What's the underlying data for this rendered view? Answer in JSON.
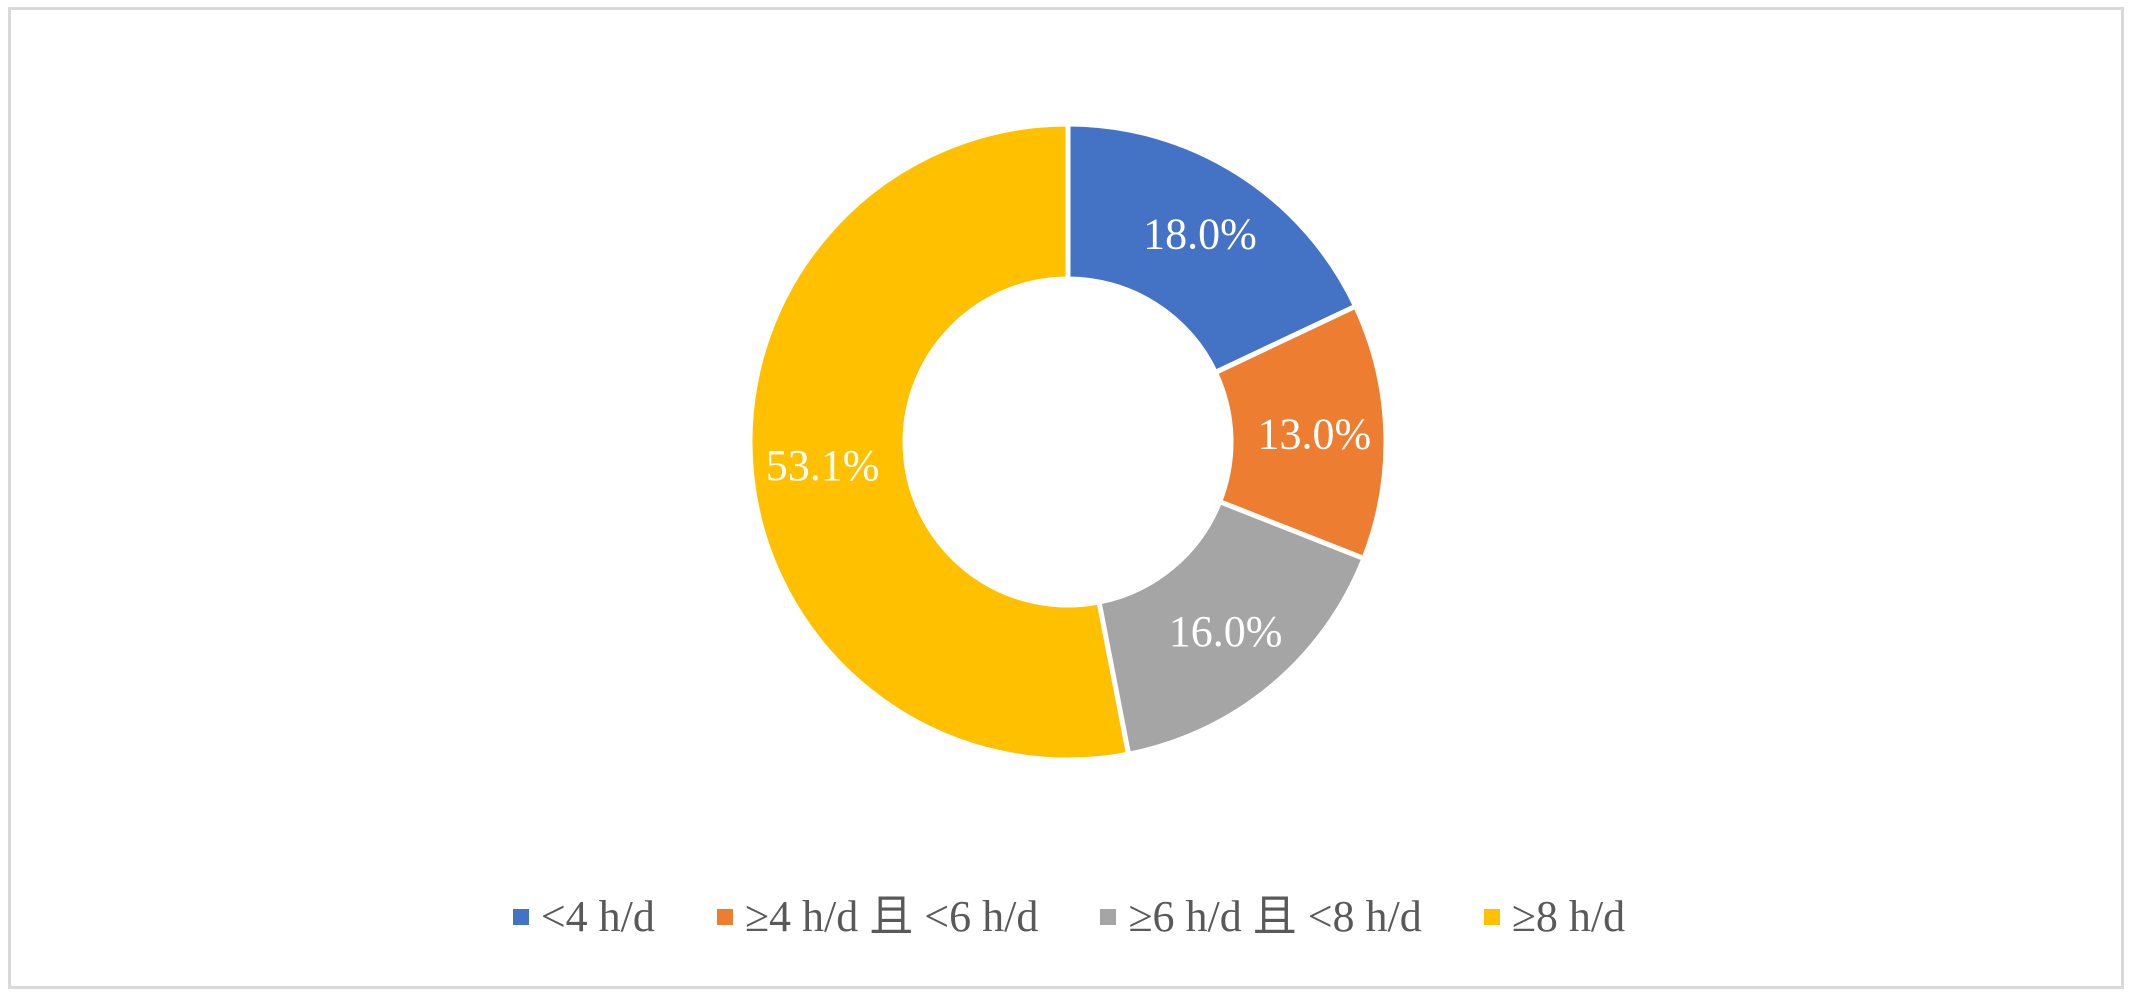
{
  "chart_data": {
    "type": "pie",
    "variant": "donut",
    "categories": [
      "<4 h/d",
      "≥4 h/d 且 <6 h/d",
      "≥6 h/d 且 <8 h/d",
      "≥8 h/d"
    ],
    "values": [
      18.0,
      13.0,
      16.0,
      53.1
    ],
    "data_labels": [
      "18.0%",
      "13.0%",
      "16.0%",
      "53.1%"
    ],
    "colors": [
      "#4472C4",
      "#ED7D31",
      "#A5A5A5",
      "#FFC000"
    ],
    "title": "",
    "legend_position": "bottom",
    "start_angle": "top, clockwise"
  }
}
